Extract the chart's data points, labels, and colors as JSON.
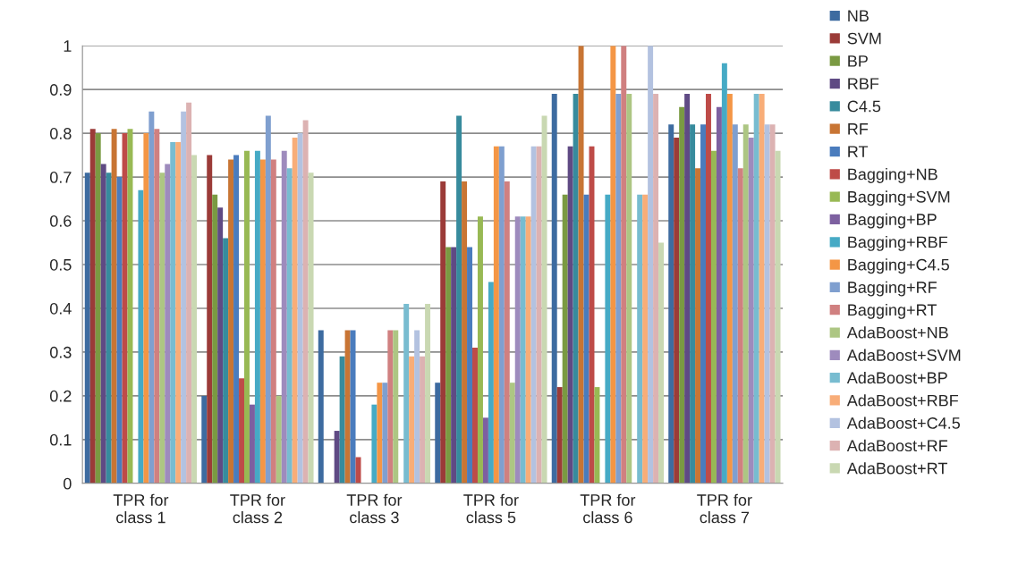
{
  "chart_data": {
    "type": "bar",
    "categories": [
      "TPR for\nclass 1",
      "TPR for\nclass 2",
      "TPR for\nclass 3",
      "TPR for\nclass 5",
      "TPR for\nclass 6",
      "TPR for\nclass 7"
    ],
    "ylim": [
      0,
      1
    ],
    "yticks": [
      0,
      0.1,
      0.2,
      0.3,
      0.4,
      0.5,
      0.6,
      0.7,
      0.8,
      0.9,
      1
    ],
    "grid": "y",
    "legend": "right",
    "series": [
      {
        "name": "NB",
        "color": "#3d6ba0",
        "values": [
          0.71,
          0.2,
          0.35,
          0.23,
          0.89,
          0.82
        ]
      },
      {
        "name": "SVM",
        "color": "#9b3b38",
        "values": [
          0.81,
          0.75,
          0,
          0.69,
          0.22,
          0.79
        ]
      },
      {
        "name": "BP",
        "color": "#7a9a42",
        "values": [
          0.8,
          0.66,
          0,
          0.54,
          0.66,
          0.86
        ]
      },
      {
        "name": "RBF",
        "color": "#5f4a84",
        "values": [
          0.73,
          0.63,
          0.12,
          0.54,
          0.77,
          0.89
        ]
      },
      {
        "name": "C4.5",
        "color": "#378b9d",
        "values": [
          0.71,
          0.56,
          0.29,
          0.84,
          0.89,
          0.82
        ]
      },
      {
        "name": "RF",
        "color": "#c87534",
        "values": [
          0.81,
          0.74,
          0.35,
          0.69,
          1,
          0.72
        ]
      },
      {
        "name": "RT",
        "color": "#4a7cbd",
        "values": [
          0.7,
          0.75,
          0.35,
          0.54,
          0.66,
          0.82
        ]
      },
      {
        "name": "Bagging+NB",
        "color": "#be4b48",
        "values": [
          0.8,
          0.24,
          0.06,
          0.31,
          0.77,
          0.89
        ]
      },
      {
        "name": "Bagging+SVM",
        "color": "#98b954",
        "values": [
          0.81,
          0.76,
          0,
          0.61,
          0.22,
          0.76
        ]
      },
      {
        "name": "Bagging+BP",
        "color": "#7d60a0",
        "values": [
          0,
          0.18,
          0,
          0.15,
          0,
          0.86
        ]
      },
      {
        "name": "Bagging+RBF",
        "color": "#46aac5",
        "values": [
          0.67,
          0.76,
          0.18,
          0.46,
          0.66,
          0.96
        ]
      },
      {
        "name": "Bagging+C4.5",
        "color": "#f49645",
        "values": [
          0.8,
          0.74,
          0.23,
          0.77,
          1,
          0.89
        ]
      },
      {
        "name": "Bagging+RF",
        "color": "#7f9fcf",
        "values": [
          0.85,
          0.84,
          0.23,
          0.77,
          0.89,
          0.82
        ]
      },
      {
        "name": "Bagging+RT",
        "color": "#d08080",
        "values": [
          0.81,
          0.74,
          0.35,
          0.69,
          1,
          0.72
        ]
      },
      {
        "name": "AdaBoost+NB",
        "color": "#adc683",
        "values": [
          0.71,
          0.2,
          0.35,
          0.23,
          0.89,
          0.82
        ]
      },
      {
        "name": "AdaBoost+SVM",
        "color": "#9e8bbd",
        "values": [
          0.73,
          0.76,
          0,
          0.61,
          0,
          0.79
        ]
      },
      {
        "name": "AdaBoost+BP",
        "color": "#78bcd0",
        "values": [
          0.78,
          0.72,
          0.41,
          0.61,
          0.66,
          0.89
        ]
      },
      {
        "name": "AdaBoost+RBF",
        "color": "#f8ad78",
        "values": [
          0.78,
          0.79,
          0.29,
          0.61,
          0.66,
          0.89
        ]
      },
      {
        "name": "AdaBoost+C4.5",
        "color": "#b3c2e0",
        "values": [
          0.85,
          0.8,
          0.35,
          0.77,
          1,
          0.82
        ]
      },
      {
        "name": "AdaBoost+RF",
        "color": "#dcb2b2",
        "values": [
          0.87,
          0.83,
          0.29,
          0.77,
          0.89,
          0.82
        ]
      },
      {
        "name": "AdaBoost+RT",
        "color": "#c9d8b2",
        "values": [
          0.75,
          0.71,
          0.41,
          0.84,
          0.55,
          0.76
        ]
      }
    ]
  }
}
